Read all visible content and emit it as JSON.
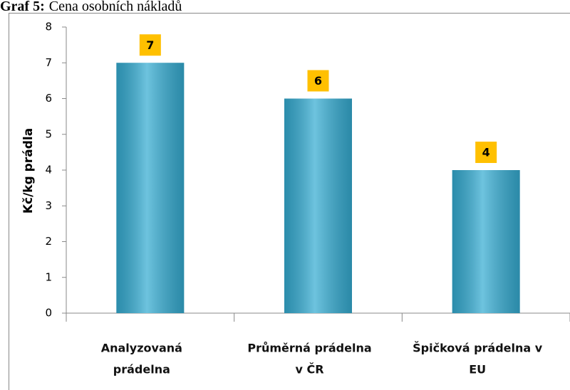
{
  "chart_data": {
    "type": "bar",
    "title_prefix": "Graf 5:",
    "title": "Cena osobních nákladů",
    "ylabel": "Kč/kg prádla",
    "categories": [
      [
        "Analyzovaná",
        "prádelna"
      ],
      [
        "Průměrná prádelna",
        "v ČR"
      ],
      [
        "Špičková prádelna v",
        "EU"
      ]
    ],
    "values": [
      7,
      6,
      4
    ],
    "color": "#35acd2",
    "label_color": "#ffc000",
    "ylim": [
      0,
      8
    ],
    "yticks": [
      0,
      1,
      2,
      3,
      4,
      5,
      6,
      7,
      8
    ]
  }
}
